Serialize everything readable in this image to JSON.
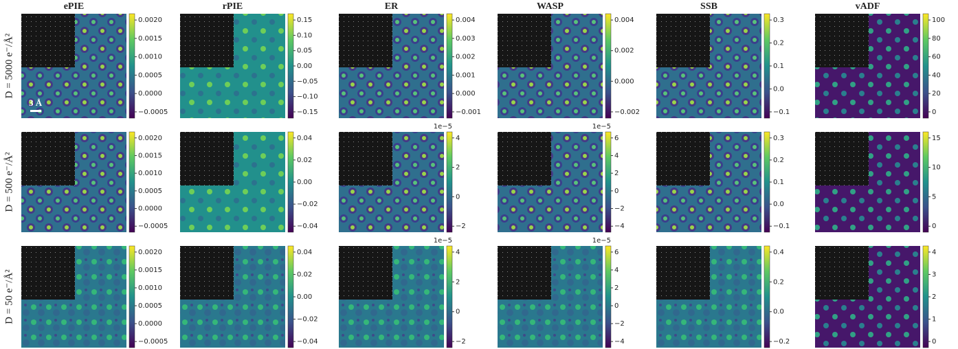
{
  "columns": [
    "ePIE",
    "rPIE",
    "ER",
    "WASP",
    "SSB",
    "vADF"
  ],
  "scale_bar": "3 Å",
  "rows": [
    {
      "label": "D = 5000 e⁻/Å²",
      "panels": [
        {
          "ticks": [
            "0.0020",
            "0.0015",
            "0.0010",
            "0.0005",
            "0.0000",
            "−0.0005"
          ]
        },
        {
          "ticks": [
            "0.15",
            "0.10",
            "0.05",
            "0.00",
            "−0.05",
            "−0.10",
            "−0.15"
          ]
        },
        {
          "ticks": [
            "0.004",
            "0.003",
            "0.002",
            "0.001",
            "0.000",
            "−0.001"
          ]
        },
        {
          "ticks": [
            "0.004",
            "0.002",
            "0.000",
            "−0.002"
          ]
        },
        {
          "ticks": [
            "0.3",
            "0.2",
            "0.1",
            "0.0",
            "−0.1"
          ]
        },
        {
          "ticks": [
            "100",
            "80",
            "60",
            "40",
            "20",
            "0"
          ]
        }
      ]
    },
    {
      "label": "D = 500 e⁻/Å²",
      "panels": [
        {
          "ticks": [
            "0.0020",
            "0.0015",
            "0.0010",
            "0.0005",
            "0.0000",
            "−0.0005"
          ]
        },
        {
          "ticks": [
            "0.04",
            "0.02",
            "0.00",
            "−0.02",
            "−0.04"
          ]
        },
        {
          "exponent": "1e−5",
          "ticks": [
            "4",
            "2",
            "0",
            "−2"
          ]
        },
        {
          "exponent": "1e−5",
          "ticks": [
            "6",
            "4",
            "2",
            "0",
            "−2",
            "−4"
          ]
        },
        {
          "ticks": [
            "0.3",
            "0.2",
            "0.1",
            "0.0",
            "−0.1"
          ]
        },
        {
          "ticks": [
            "15",
            "10",
            "5",
            "0"
          ]
        }
      ]
    },
    {
      "label": "D = 50 e⁻/Å²",
      "panels": [
        {
          "ticks": [
            "0.0020",
            "0.0015",
            "0.0010",
            "0.0005",
            "0.0000",
            "−0.0005"
          ]
        },
        {
          "ticks": [
            "0.04",
            "0.02",
            "0.00",
            "−0.02",
            "−0.04"
          ]
        },
        {
          "exponent": "1e−5",
          "ticks": [
            "4",
            "2",
            "0",
            "−2"
          ]
        },
        {
          "exponent": "1e−5",
          "ticks": [
            "6",
            "4",
            "2",
            "0",
            "−2",
            "−4"
          ]
        },
        {
          "ticks": [
            "0.4",
            "0.2",
            "0.0",
            "−0.2"
          ]
        },
        {
          "ticks": [
            "4",
            "3",
            "2",
            "1",
            "0"
          ]
        }
      ]
    }
  ]
}
